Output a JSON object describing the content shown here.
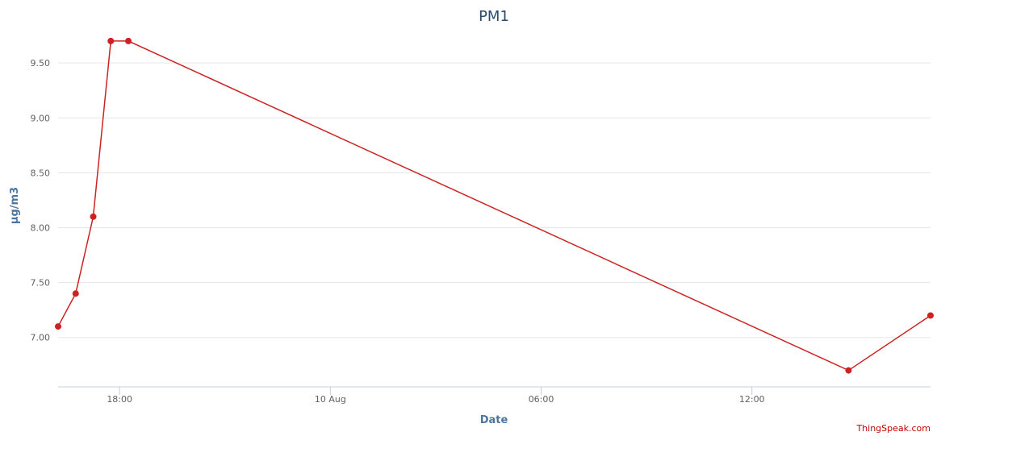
{
  "chart_data": {
    "type": "line",
    "title": "PM1",
    "xlabel": "Date",
    "ylabel": "µg/m3",
    "x_tick_labels": [
      "18:00",
      "10 Aug",
      "06:00",
      "12:00"
    ],
    "y_tick_labels": [
      "7.00",
      "7.50",
      "8.00",
      "8.50",
      "9.00",
      "9.50"
    ],
    "ylim": [
      6.55,
      9.78
    ],
    "grid": true,
    "legend": "none",
    "color": "#cc2222",
    "series": [
      {
        "x": [
          "09 Aug 16:15",
          "09 Aug 16:45",
          "09 Aug 17:15",
          "09 Aug 17:45",
          "09 Aug 18:15",
          "10 Aug 14:45",
          "10 Aug 17:05"
        ],
        "values": [
          7.1,
          7.4,
          8.1,
          9.7,
          9.7,
          6.7,
          7.2
        ]
      }
    ],
    "credits": "ThingSpeak.com"
  }
}
